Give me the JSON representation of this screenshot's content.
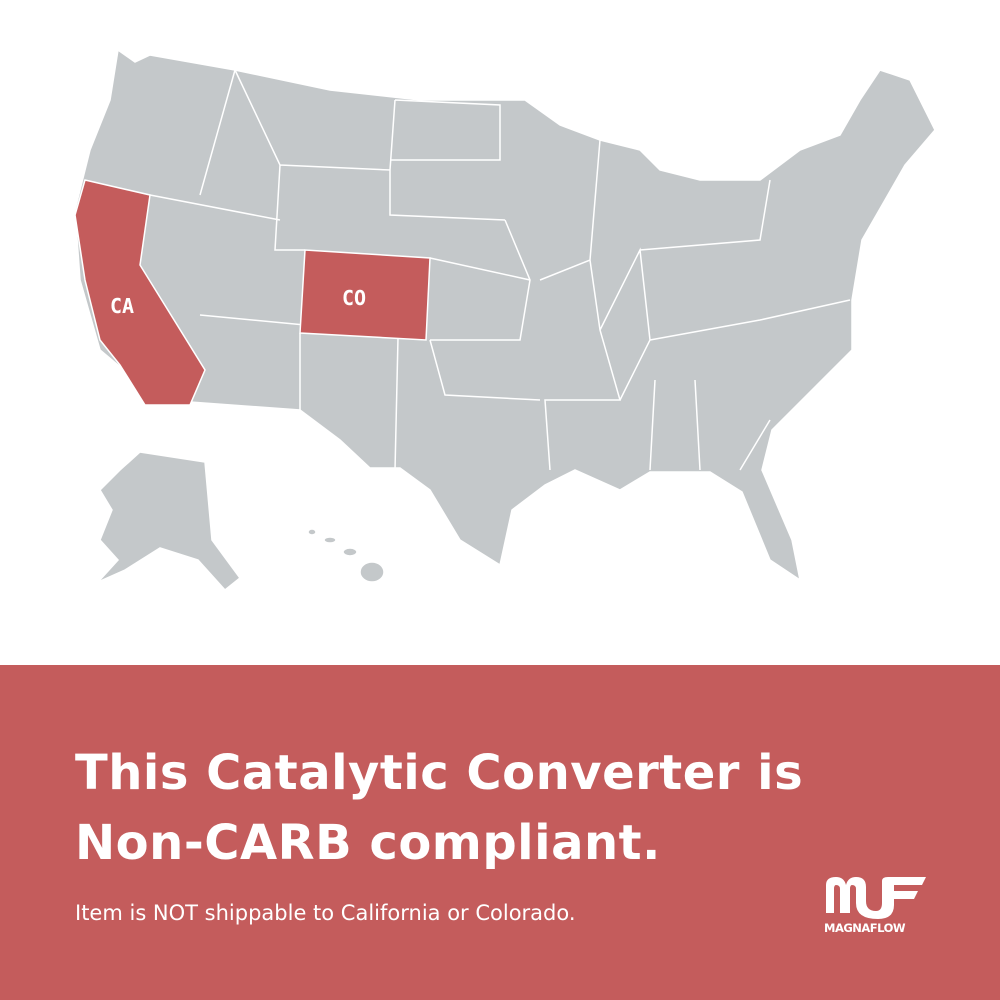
{
  "map": {
    "highlighted_states": [
      {
        "abbr": "CA",
        "name": "California"
      },
      {
        "abbr": "CO",
        "name": "Colorado"
      }
    ],
    "colors": {
      "land": "#c4c8ca",
      "highlight": "#c45c5c",
      "border": "#ffffff"
    }
  },
  "banner": {
    "headline_line1": "This Catalytic Converter is",
    "headline_line2": "Non-CARB compliant.",
    "subtext": "Item is NOT shippable to California or Colorado.",
    "background": "#c45c5c"
  },
  "logo": {
    "text": "MAGNAFLOW",
    "mark": "MF"
  }
}
